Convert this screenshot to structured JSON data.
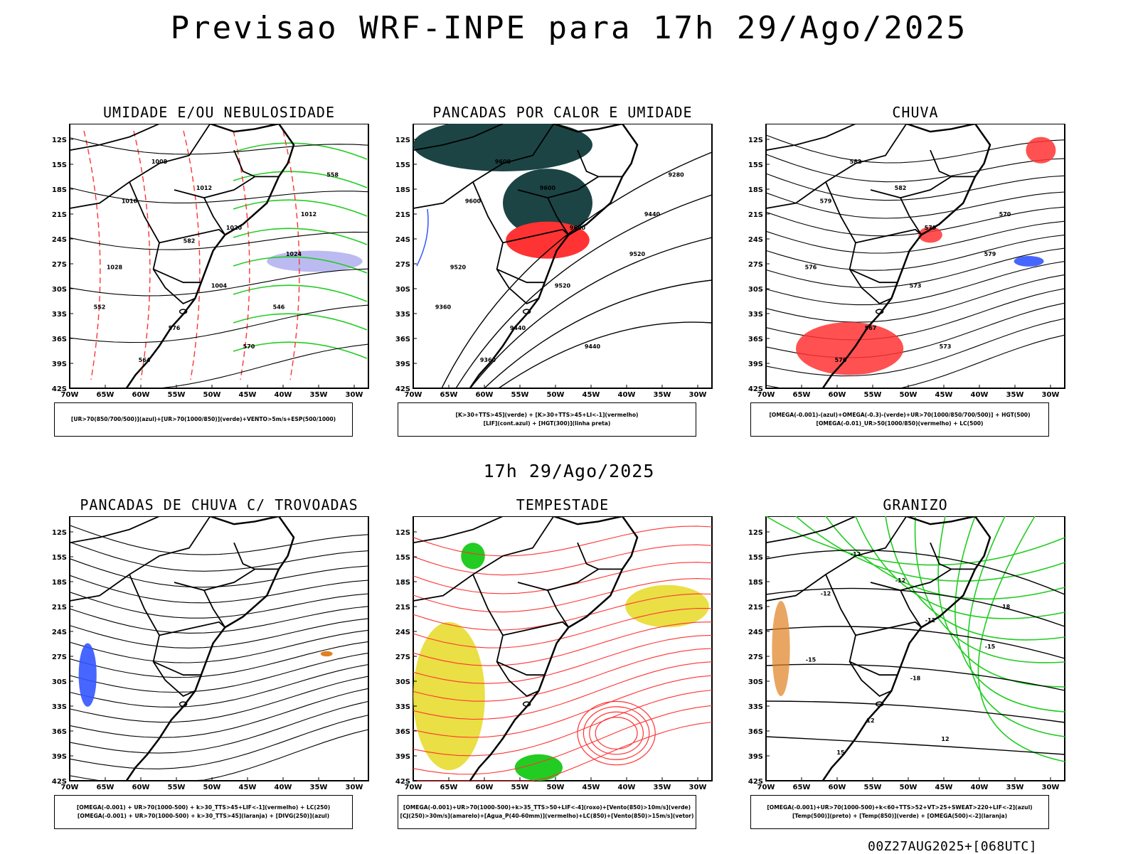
{
  "header": {
    "title": "Previsao WRF-INPE  para 17h 29/Ago/2025"
  },
  "middle_title": "17h 29/Ago/2025",
  "footer": "00Z27AUG2025+[068UTC]",
  "axes": {
    "lat_labels": [
      "12S",
      "15S",
      "18S",
      "21S",
      "24S",
      "27S",
      "30S",
      "33S",
      "36S",
      "39S",
      "42S"
    ],
    "lon_labels": [
      "70W",
      "65W",
      "60W",
      "55W",
      "50W",
      "45W",
      "40W",
      "35W",
      "30W"
    ]
  },
  "panels": [
    {
      "title": "UMIDADE E/OU NEBULOSIDADE",
      "legend": [
        "[UR>70(850/700/500)](azul)+[UR>70(1000/850)](verde)+VENTO>5m/s+ESP(500/1000)"
      ],
      "contour_labels": [
        "1008",
        "1012",
        "1016",
        "1020",
        "1024",
        "1028",
        "1004",
        "1012",
        "576",
        "570",
        "564",
        "558",
        "552",
        "546",
        "582"
      ]
    },
    {
      "title": "PANCADAS POR CALOR E UMIDADE",
      "legend": [
        "[K>30+TTS>45](verde)  +  [K>30+TTS>45+LI<-1](vermelho)",
        "[LIF](cont.azul)  +  [HGT(300)](linha preta)"
      ],
      "contour_labels": [
        "9600",
        "9600",
        "9600",
        "9600",
        "9520",
        "9520",
        "9520",
        "9440",
        "9440",
        "9440",
        "9360",
        "9280",
        "9360"
      ]
    },
    {
      "title": "CHUVA",
      "legend": [
        "[OMEGA(-0.001)-(azul)+OMEGA(-0.3)-(verde)+UR>70(1000/850/700/500)]  +  HGT(500)",
        "[OMEGA(-0.01)_UR>50(1000/850)(vermelho)  +  LC(500)"
      ],
      "contour_labels": [
        "582",
        "582",
        "579",
        "579",
        "579",
        "576",
        "573",
        "570",
        "567",
        "573",
        "576"
      ]
    },
    {
      "title": "PANCADAS DE CHUVA C/ TROVOADAS",
      "legend": [
        "[OMEGA(-0.001)  +  UR>70(1000-500)  +  k>30_TTS>45+LIF<-1](vermelho)  +  LC(250)",
        "[OMEGA(-0.001)  +  UR>70(1000-500)  +  k>30_TTS>45](laranja)  +  [DIVG(250)](azul)"
      ],
      "contour_labels": []
    },
    {
      "title": "TEMPESTADE",
      "legend": [
        "[OMEGA(-0.001)+UR>70(1000-500)+k>35_TTS>50+LIF<-4](roxo)+[Vento(850)>10m/s](verde)",
        "[CJ(250)>30m/s](amarelo)+[Agua_P(40-60mm)](vermelho)+LC(850)+[Vento(850)>15m/s](vetor)"
      ],
      "contour_labels": []
    },
    {
      "title": "GRANIZO",
      "legend": [
        "[OMEGA(-0.001)+UR>70(1000-500)+k<60+TTS>52+VT>25+SWEAT>220+LIF<-2](azul)",
        "[Temp(500)](preto)  +  [Temp(850)](verde)  +  [OMEGA(500)<-2](laranja)"
      ],
      "contour_labels": [
        "-12",
        "-12",
        "-12",
        "-12",
        "-15",
        "-15",
        "-18",
        "-18",
        "12",
        "12",
        "15"
      ]
    }
  ],
  "colors": {
    "frame": "#000000",
    "red": "#ff3333",
    "green": "#22cc22",
    "blue": "#3355ff",
    "lavender": "#aaaaee",
    "darkteal": "#1c4444",
    "yellow": "#e8dc30",
    "orange": "#e08020"
  }
}
